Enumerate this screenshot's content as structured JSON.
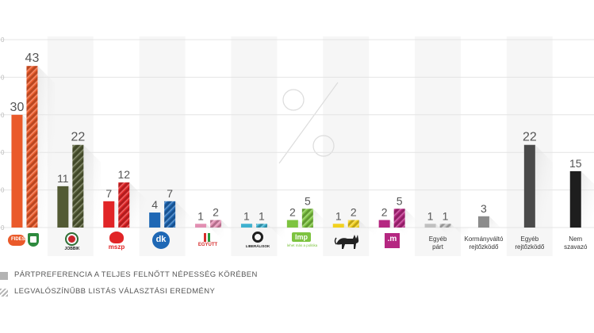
{
  "chart_data": {
    "type": "bar",
    "categories": [
      "Fidesz-KDNP",
      "Jobbik",
      "MSZP",
      "DK",
      "Együtt",
      "Liberálisok",
      "LMP",
      "MKKP",
      ".m",
      "Egyéb párt",
      "Kormányváltó rejtőzködő",
      "Egyéb rejtőzködő",
      "Nem szavazó"
    ],
    "category_labels": [
      "",
      "",
      "",
      "",
      "",
      "",
      "",
      "",
      "",
      "Egyéb párt",
      "Kormányváltó rejtőzködő",
      "Egyéb rejtőzködő",
      "Nem szavazó"
    ],
    "series": [
      {
        "name": "PÁRTPREFERENCIA A TELJES FELNŐTT NÉPESSÉG KÖRÉBEN",
        "values": [
          30,
          11,
          7,
          4,
          1,
          1,
          2,
          1,
          2,
          1,
          3,
          22,
          15
        ],
        "labels": [
          "30",
          "11",
          "7",
          "4",
          "1",
          "1",
          "2",
          "1",
          "2",
          "1",
          "3",
          "22",
          "15"
        ]
      },
      {
        "name": "LEGVALÓSZÍNŰBB LISTÁS VÁLASZTÁSI EREDMÉNY",
        "values": [
          43,
          22,
          12,
          7,
          2,
          1,
          5,
          2,
          5,
          1,
          null,
          null,
          null
        ],
        "labels": [
          "43",
          "22",
          "12",
          "7",
          "2",
          "1",
          "5",
          "2",
          "5",
          "1",
          "",
          "",
          ""
        ]
      }
    ],
    "colors": [
      "#ea5a2a",
      "#525a34",
      "#e12527",
      "#1f68b5",
      "#e28fb2",
      "#3fb1cf",
      "#7dc340",
      "#f2d11f",
      "#b52781",
      "#c0c0c0",
      "#8c8c8c",
      "#4a4a4a",
      "#1e1e1e"
    ],
    "y_tick_labels": [
      "0",
      "0",
      "0",
      "0",
      "0",
      "0"
    ],
    "ylim": [
      0,
      50
    ],
    "grid": true
  },
  "logos": {
    "fidesz": "FIDESZ",
    "jobbik": "JOBBIK",
    "mszp": "mszp",
    "dk": "dk",
    "egyutt": "EGYÜTT",
    "liberalisok": "LIBERÁLISOK",
    "lmp": "lmp",
    "lmp_sub": "lehet más a politika",
    "momentum": ".m"
  },
  "legend": {
    "solid_label": "PÁRTPREFERENCIA A TELJES FELNŐTT NÉPESSÉG KÖRÉBEN",
    "hatched_label": "LEGVALÓSZÍNŰBB LISTÁS VÁLASZTÁSI EREDMÉNY"
  }
}
